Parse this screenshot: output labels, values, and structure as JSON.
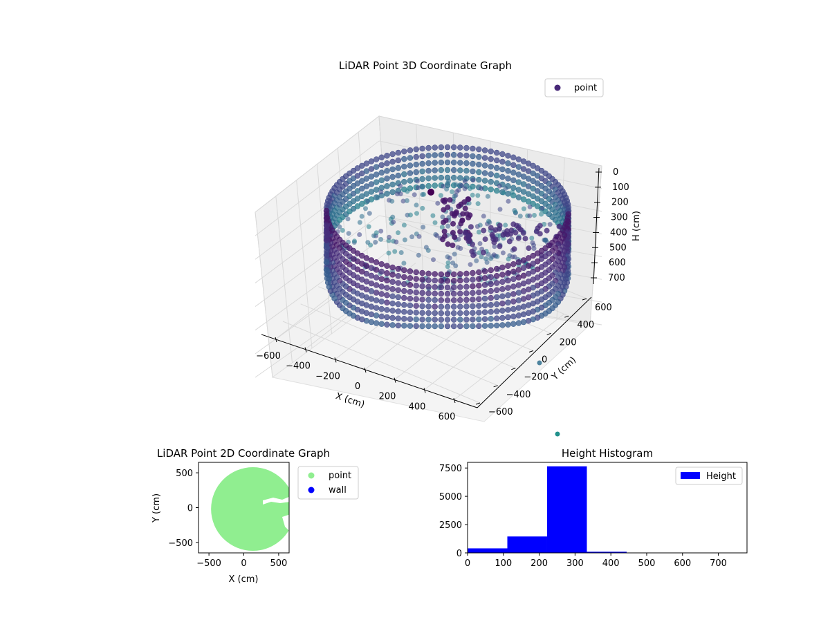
{
  "chart_data": [
    {
      "type": "scatter",
      "projection": "3d",
      "title": "LiDAR Point 3D Coordinate Graph",
      "xlabel": "X (cm)",
      "ylabel": "Y (cm)",
      "zlabel": "H (cm)",
      "x_ticks": [
        -600,
        -400,
        -200,
        0,
        200,
        400,
        600
      ],
      "y_ticks": [
        -600,
        -400,
        -200,
        0,
        200,
        400,
        600
      ],
      "z_ticks": [
        0,
        100,
        200,
        300,
        400,
        500,
        600,
        700
      ],
      "z_inverted": true,
      "xlim": [
        -650,
        650
      ],
      "ylim": [
        -650,
        650
      ],
      "zlim": [
        0,
        750
      ],
      "colormap": "viridis",
      "legend": {
        "position": "top-right",
        "entries": [
          {
            "label": "point",
            "color": "#482878"
          }
        ]
      },
      "series": [
        {
          "name": "point",
          "shape": "cylindrical wall",
          "radius": 600,
          "height_range": [
            0,
            200
          ]
        },
        {
          "name": "point",
          "shape": "interior clutter",
          "x_range": [
            -500,
            400
          ],
          "y_range": [
            -400,
            400
          ],
          "height_range": [
            200,
            350
          ]
        },
        {
          "name": "point",
          "values": [
            {
              "x": 560,
              "y": 0,
              "h": 720
            },
            {
              "x": 640,
              "y": -600,
              "h": 740
            }
          ]
        }
      ]
    },
    {
      "type": "scatter",
      "title": "LiDAR Point 2D Coordinate Graph",
      "xlabel": "X (cm)",
      "ylabel": "Y (cm)",
      "x_ticks": [
        -500,
        0,
        500
      ],
      "y_ticks": [
        -500,
        0,
        500
      ],
      "xlim": [
        -650,
        650
      ],
      "ylim": [
        -650,
        650
      ],
      "legend": {
        "position": "outside-right",
        "entries": [
          {
            "label": "point",
            "color": "#90ee90"
          },
          {
            "label": "wall",
            "color": "#0000ff"
          }
        ]
      },
      "series": [
        {
          "name": "point",
          "color": "#90ee90",
          "shape": "filled disc",
          "center": [
            130,
            -20
          ],
          "radius": 600
        }
      ]
    },
    {
      "type": "bar",
      "title": "Height Histogram",
      "xlabel": "",
      "ylabel": "",
      "x_ticks": [
        0,
        100,
        200,
        300,
        400,
        500,
        600,
        700
      ],
      "y_ticks": [
        0,
        2500,
        5000,
        7500
      ],
      "xlim": [
        0,
        780
      ],
      "ylim": [
        0,
        8000
      ],
      "legend": {
        "position": "top-right",
        "entries": [
          {
            "label": "Height",
            "color": "#0000ff"
          }
        ]
      },
      "series": [
        {
          "name": "Height",
          "color": "#0000ff",
          "bins": [
            [
              0,
              111
            ],
            [
              111,
              222
            ],
            [
              222,
              333
            ],
            [
              333,
              444
            ],
            [
              444,
              555
            ],
            [
              555,
              666
            ],
            [
              666,
              777
            ]
          ],
          "values": [
            400,
            1450,
            7650,
            100,
            10,
            5,
            5
          ]
        }
      ]
    }
  ]
}
